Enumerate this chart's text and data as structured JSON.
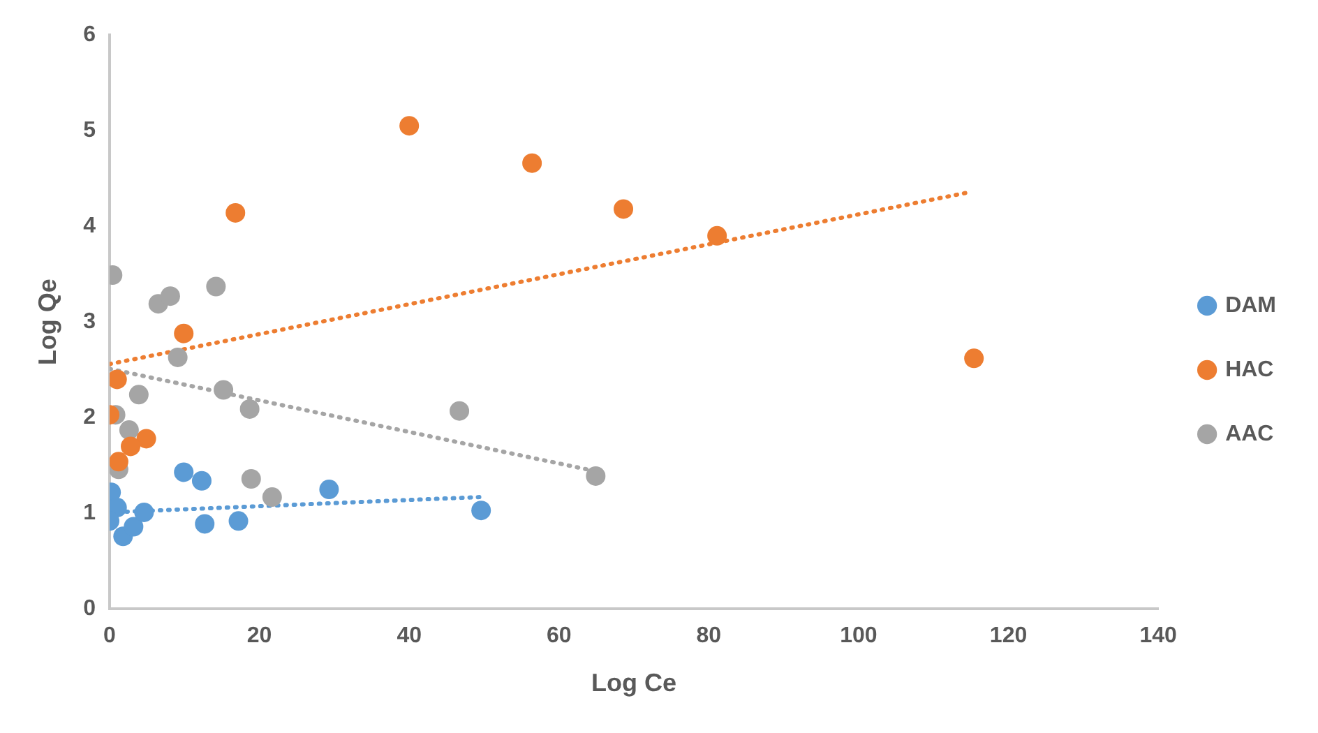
{
  "chart_data": {
    "type": "scatter",
    "xlabel": "Log Ce",
    "ylabel": "Log Qe",
    "xlim": [
      0,
      140
    ],
    "xticks": [
      0,
      20,
      40,
      60,
      80,
      100,
      120,
      140
    ],
    "ylim": [
      0,
      6
    ],
    "yticks": [
      0,
      1,
      2,
      3,
      4,
      5,
      6
    ],
    "grid": false,
    "legend": "right",
    "marker": "circle",
    "line_style": "dotted",
    "series": [
      {
        "name": "DAM",
        "color": "#5b9bd5",
        "x": [
          0.2,
          1,
          0,
          1.8,
          3.2,
          4.6,
          9.9,
          12.3,
          12.7,
          17.2,
          29.3,
          49.6
        ],
        "values": [
          1.22,
          1.06,
          0.92,
          0.76,
          0.86,
          1.01,
          1.43,
          1.34,
          0.89,
          0.92,
          1.25,
          1.03
        ]
      },
      {
        "name": "HAC",
        "color": "#ed7d31",
        "x": [
          40,
          56.4,
          68.6,
          81.1,
          16.8,
          9.9,
          1,
          0,
          4.9,
          2.8,
          1.2,
          115.4
        ],
        "values": [
          5.05,
          4.66,
          4.18,
          3.9,
          4.14,
          2.88,
          2.4,
          2.03,
          1.78,
          1.7,
          1.54,
          2.62
        ]
      },
      {
        "name": "AAC",
        "color": "#a5a5a5",
        "x": [
          0.4,
          6.5,
          8.1,
          14.2,
          9.1,
          3.9,
          15.2,
          18.7,
          46.7,
          0.8,
          2.6,
          1.2,
          18.9,
          21.7,
          64.9
        ],
        "values": [
          3.49,
          3.19,
          3.27,
          3.37,
          2.63,
          2.24,
          2.29,
          2.09,
          2.07,
          2.03,
          1.87,
          1.46,
          1.36,
          1.17,
          1.39
        ]
      },
      {
        "type": "line",
        "marker": "none",
        "color": "#5b9bd5",
        "x": [
          0,
          49.4
        ],
        "values": [
          1.01,
          1.17
        ]
      },
      {
        "type": "line",
        "marker": "none",
        "color": "#ed7d31",
        "x": [
          0,
          114.4
        ],
        "values": [
          2.56,
          4.35
        ]
      },
      {
        "type": "line",
        "marker": "none",
        "color": "#a5a5a5",
        "x": [
          0,
          63.7
        ],
        "values": [
          2.51,
          1.46
        ]
      }
    ]
  }
}
